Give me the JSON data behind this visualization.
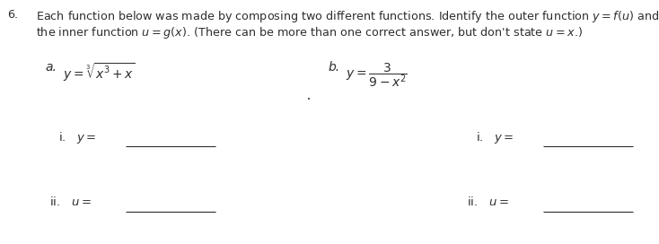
{
  "background_color": "#ffffff",
  "fig_width": 7.34,
  "fig_height": 2.72,
  "dpi": 100,
  "text_color": "#2d2d2d",
  "font_size_main": 9.2,
  "font_size_parts": 10.0,
  "font_size_sub": 9.5,
  "header_line1": "Each function below was made by composing two different functions. Identify the outer function $y = f(u)$ and",
  "header_line2": "the inner function $u = g(x)$. (There can be more than one correct answer, but don't state $u = x$.)",
  "q_number": "6.",
  "part_a_label": "a.",
  "part_a_func": "$y = \\sqrt[3]{x^3 + x}$",
  "part_b_label": "b.",
  "part_b_func": "$y = \\dfrac{3}{9-x^2}$",
  "sub_i": "i.   $y =$ ",
  "sub_ii": "ii.   $u =$ "
}
